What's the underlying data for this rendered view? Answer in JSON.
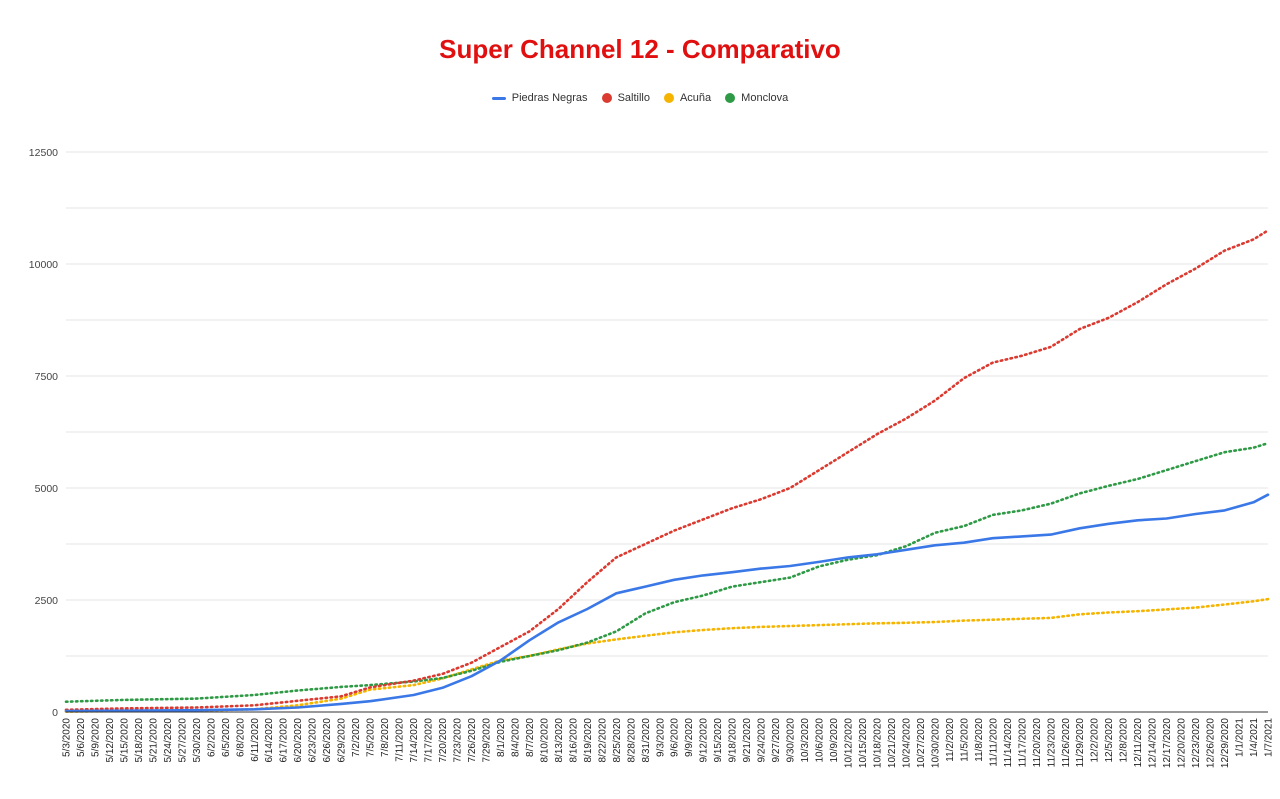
{
  "chart_data": {
    "type": "line",
    "title": "Super Channel 12 - Comparativo",
    "xlabel": "",
    "ylabel": "",
    "ylim": [
      0,
      12500
    ],
    "yticks": [
      0,
      2500,
      5000,
      7500,
      10000,
      12500
    ],
    "grid": true,
    "legend_position": "top",
    "x_start": "5/3/2020",
    "x_end": "1/7/2021",
    "x_tick_labels": [
      "5/3/2020",
      "5/6/2020",
      "5/9/2020",
      "5/12/2020",
      "5/15/2020",
      "5/18/2020",
      "5/21/2020",
      "5/24/2020",
      "5/27/2020",
      "5/30/2020",
      "6/2/2020",
      "6/5/2020",
      "6/8/2020",
      "6/11/2020",
      "6/14/2020",
      "6/17/2020",
      "6/20/2020",
      "6/23/2020",
      "6/26/2020",
      "6/29/2020",
      "7/2/2020",
      "7/5/2020",
      "7/8/2020",
      "7/11/2020",
      "7/14/2020",
      "7/17/2020",
      "7/20/2020",
      "7/23/2020",
      "7/26/2020",
      "7/29/2020",
      "8/1/2020",
      "8/4/2020",
      "8/7/2020",
      "8/10/2020",
      "8/13/2020",
      "8/16/2020",
      "8/19/2020",
      "8/22/2020",
      "8/25/2020",
      "8/28/2020",
      "8/31/2020",
      "9/3/2020",
      "9/6/2020",
      "9/9/2020",
      "9/12/2020",
      "9/15/2020",
      "9/18/2020",
      "9/21/2020",
      "9/24/2020",
      "9/27/2020",
      "9/30/2020",
      "10/3/2020",
      "10/6/2020",
      "10/9/2020",
      "10/12/2020",
      "10/15/2020",
      "10/18/2020",
      "10/21/2020",
      "10/24/2020",
      "10/27/2020",
      "10/30/2020",
      "11/2/2020",
      "11/5/2020",
      "11/8/2020",
      "11/11/2020",
      "11/14/2020",
      "11/17/2020",
      "11/20/2020",
      "11/23/2020",
      "11/26/2020",
      "11/29/2020",
      "12/2/2020",
      "12/5/2020",
      "12/8/2020",
      "12/11/2020",
      "12/14/2020",
      "12/17/2020",
      "12/20/2020",
      "12/23/2020",
      "12/26/2020",
      "12/29/2020",
      "1/1/2021",
      "1/4/2021",
      "1/7/2021"
    ],
    "x_sample_dates": [
      "5/3/2020",
      "5/15/2020",
      "5/30/2020",
      "6/11/2020",
      "6/20/2020",
      "6/29/2020",
      "7/5/2020",
      "7/14/2020",
      "7/20/2020",
      "7/26/2020",
      "8/1/2020",
      "8/7/2020",
      "8/13/2020",
      "8/19/2020",
      "8/25/2020",
      "8/31/2020",
      "9/6/2020",
      "9/12/2020",
      "9/18/2020",
      "9/24/2020",
      "9/30/2020",
      "10/6/2020",
      "10/12/2020",
      "10/18/2020",
      "10/24/2020",
      "10/30/2020",
      "11/5/2020",
      "11/11/2020",
      "11/17/2020",
      "11/23/2020",
      "11/29/2020",
      "12/5/2020",
      "12/11/2020",
      "12/17/2020",
      "12/23/2020",
      "12/29/2020",
      "1/4/2021",
      "1/7/2021"
    ],
    "series": [
      {
        "name": "Piedras Negras",
        "color": "#3b78e7",
        "style": "solid",
        "values": [
          20,
          30,
          40,
          60,
          100,
          180,
          240,
          380,
          540,
          800,
          1150,
          1600,
          2000,
          2300,
          2650,
          2800,
          2950,
          3050,
          3120,
          3200,
          3260,
          3350,
          3450,
          3520,
          3620,
          3720,
          3780,
          3880,
          3920,
          3960,
          4100,
          4200,
          4280,
          4320,
          4420,
          4500,
          4680,
          4850
        ]
      },
      {
        "name": "Saltillo",
        "color": "#db3a30",
        "style": "dotted",
        "values": [
          50,
          80,
          100,
          150,
          250,
          350,
          550,
          700,
          850,
          1100,
          1450,
          1800,
          2300,
          2900,
          3450,
          3750,
          4050,
          4300,
          4550,
          4750,
          5000,
          5400,
          5800,
          6200,
          6550,
          6950,
          7450,
          7800,
          7950,
          8150,
          8550,
          8800,
          9150,
          9550,
          9900,
          10300,
          10550,
          10750
        ]
      },
      {
        "name": "Acuña",
        "color": "#f4b400",
        "style": "dotted",
        "values": [
          10,
          20,
          30,
          60,
          150,
          300,
          500,
          600,
          750,
          950,
          1150,
          1250,
          1400,
          1530,
          1620,
          1700,
          1780,
          1830,
          1870,
          1900,
          1920,
          1940,
          1960,
          1980,
          1990,
          2010,
          2040,
          2060,
          2080,
          2100,
          2180,
          2220,
          2250,
          2290,
          2330,
          2400,
          2470,
          2520
        ]
      },
      {
        "name": "Monclova",
        "color": "#2f9a46",
        "style": "dotted",
        "values": [
          230,
          270,
          300,
          380,
          480,
          560,
          600,
          680,
          760,
          920,
          1120,
          1250,
          1380,
          1550,
          1800,
          2200,
          2450,
          2600,
          2800,
          2900,
          3000,
          3250,
          3400,
          3500,
          3700,
          4000,
          4150,
          4400,
          4500,
          4650,
          4880,
          5050,
          5200,
          5400,
          5600,
          5800,
          5900,
          6000
        ]
      }
    ]
  }
}
